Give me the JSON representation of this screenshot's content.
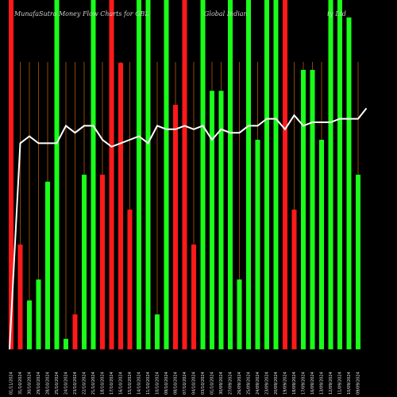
{
  "chart_data": {
    "type": "bar",
    "title_parts": [
      "MunafaSutra Money Flow Charts for GBL",
      "Global Indian",
      "ty Ltd"
    ],
    "ylim": [
      0,
      100
    ],
    "colors": {
      "up": "#1aff1a",
      "down": "#ff1a1a",
      "grid": "#b35900",
      "line": "#ffffff",
      "background": "#000000"
    },
    "bars": [
      {
        "date": "01/11/2024",
        "value": 100,
        "dir": "down"
      },
      {
        "date": "31/10/2024",
        "value": 30,
        "dir": "down"
      },
      {
        "date": "30/10/2024",
        "value": 14,
        "dir": "up"
      },
      {
        "date": "29/10/2024",
        "value": 20,
        "dir": "up"
      },
      {
        "date": "28/10/2024",
        "value": 48,
        "dir": "up"
      },
      {
        "date": "25/10/2024",
        "value": 100,
        "dir": "up"
      },
      {
        "date": "24/10/2024",
        "value": 3,
        "dir": "up"
      },
      {
        "date": "23/10/2024",
        "value": 10,
        "dir": "down"
      },
      {
        "date": "22/10/2024",
        "value": 50,
        "dir": "up"
      },
      {
        "date": "21/10/2024",
        "value": 100,
        "dir": "up"
      },
      {
        "date": "18/10/2024",
        "value": 50,
        "dir": "down"
      },
      {
        "date": "17/10/2024",
        "value": 100,
        "dir": "down"
      },
      {
        "date": "16/10/2024",
        "value": 82,
        "dir": "down"
      },
      {
        "date": "15/10/2024",
        "value": 40,
        "dir": "down"
      },
      {
        "date": "14/10/2024",
        "value": 100,
        "dir": "up"
      },
      {
        "date": "11/10/2024",
        "value": 100,
        "dir": "up"
      },
      {
        "date": "10/10/2024",
        "value": 10,
        "dir": "up"
      },
      {
        "date": "09/10/2024",
        "value": 100,
        "dir": "up"
      },
      {
        "date": "08/10/2024",
        "value": 70,
        "dir": "down"
      },
      {
        "date": "07/10/2024",
        "value": 100,
        "dir": "down"
      },
      {
        "date": "04/10/2024",
        "value": 30,
        "dir": "down"
      },
      {
        "date": "03/10/2024",
        "value": 100,
        "dir": "up"
      },
      {
        "date": "01/10/2024",
        "value": 74,
        "dir": "up"
      },
      {
        "date": "30/09/2024",
        "value": 74,
        "dir": "up"
      },
      {
        "date": "27/09/2024",
        "value": 100,
        "dir": "up"
      },
      {
        "date": "26/09/2024",
        "value": 20,
        "dir": "up"
      },
      {
        "date": "25/09/2024",
        "value": 100,
        "dir": "up"
      },
      {
        "date": "24/09/2024",
        "value": 60,
        "dir": "up"
      },
      {
        "date": "23/09/2024",
        "value": 100,
        "dir": "up"
      },
      {
        "date": "20/09/2024",
        "value": 100,
        "dir": "up"
      },
      {
        "date": "19/09/2024",
        "value": 100,
        "dir": "down"
      },
      {
        "date": "18/09/2024",
        "value": 40,
        "dir": "down"
      },
      {
        "date": "17/09/2024",
        "value": 80,
        "dir": "up"
      },
      {
        "date": "16/09/2024",
        "value": 80,
        "dir": "up"
      },
      {
        "date": "13/09/2024",
        "value": 60,
        "dir": "up"
      },
      {
        "date": "12/09/2024",
        "value": 100,
        "dir": "up"
      },
      {
        "date": "11/09/2024",
        "value": 100,
        "dir": "up"
      },
      {
        "date": "10/09/2024",
        "value": 95,
        "dir": "up"
      },
      {
        "date": "09/09/2024",
        "value": 50,
        "dir": "up"
      }
    ],
    "line_values": [
      0,
      59,
      61,
      59,
      59,
      59,
      64,
      62,
      64,
      64,
      60,
      58,
      59,
      60,
      61,
      59,
      64,
      63,
      63,
      64,
      63,
      64,
      60,
      63,
      62,
      62,
      64,
      64,
      66,
      66,
      63,
      67,
      64,
      65,
      65,
      65,
      66,
      66,
      66,
      69
    ]
  }
}
